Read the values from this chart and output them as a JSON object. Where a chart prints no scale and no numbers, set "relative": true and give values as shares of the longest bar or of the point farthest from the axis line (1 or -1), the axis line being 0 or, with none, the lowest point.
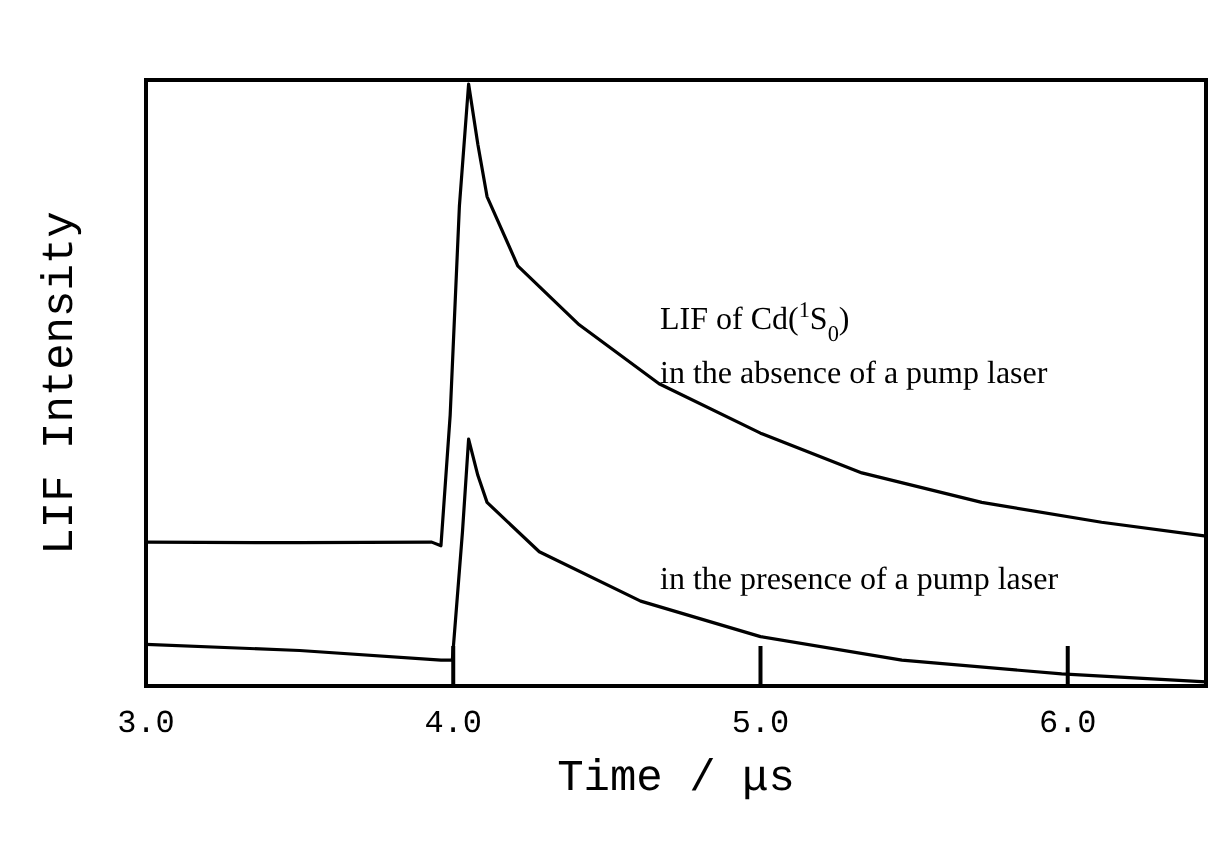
{
  "chart_data": {
    "type": "line",
    "relative": true,
    "xlabel": "Time / μs",
    "ylabel": "LIF  Intensity",
    "xlim": [
      3.0,
      6.45
    ],
    "xticks": [
      {
        "value": 3,
        "label": "3.0"
      },
      {
        "value": 4,
        "label": "4.0"
      },
      {
        "value": 5,
        "label": "5.0"
      },
      {
        "value": 6,
        "label": "6.0"
      }
    ],
    "grid": false,
    "marker": "none",
    "line_style": "solid",
    "annotations": [
      "LIF of Cd($^{1}$S$_{0}$)"
    ],
    "series": [
      {
        "name": "in the absence of a pump laser",
        "color": "#000000",
        "x": [
          3.0,
          3.5,
          3.93,
          3.96,
          3.99,
          4.02,
          4.05,
          4.08,
          4.11,
          4.21,
          4.41,
          4.67,
          5.0,
          5.33,
          5.72,
          6.11,
          6.45
        ],
        "values": [
          0.239,
          0.238,
          0.239,
          0.233,
          0.45,
          0.797,
          1.0,
          0.9,
          0.813,
          0.698,
          0.6,
          0.502,
          0.42,
          0.354,
          0.305,
          0.272,
          0.249
        ]
      },
      {
        "name": "in the presence of a pump laser",
        "color": "#000000",
        "x": [
          3.0,
          3.5,
          3.96,
          3.997,
          4.03,
          4.05,
          4.08,
          4.11,
          4.28,
          4.61,
          5.0,
          5.46,
          5.98,
          6.45
        ],
        "values": [
          0.069,
          0.059,
          0.043,
          0.043,
          0.256,
          0.41,
          0.35,
          0.305,
          0.223,
          0.141,
          0.082,
          0.043,
          0.02,
          0.007
        ]
      }
    ]
  }
}
